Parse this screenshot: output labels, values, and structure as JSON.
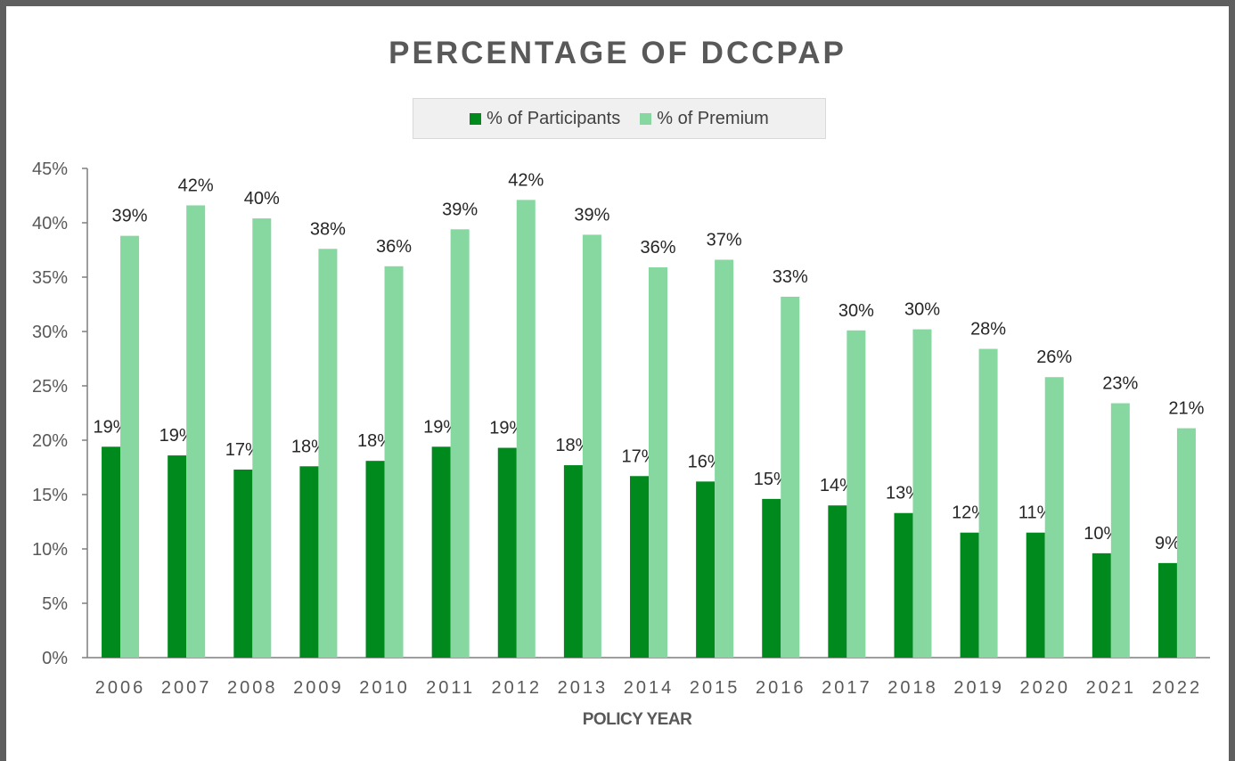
{
  "chart_data": {
    "type": "bar",
    "title": "PERCENTAGE OF DCCPAP",
    "xlabel": "POLICY YEAR",
    "ylabel": "",
    "ylim": [
      0,
      45
    ],
    "y_ticks": [
      "0%",
      "5%",
      "10%",
      "15%",
      "20%",
      "25%",
      "30%",
      "35%",
      "40%",
      "45%"
    ],
    "categories": [
      "2006",
      "2007",
      "2008",
      "2009",
      "2010",
      "2011",
      "2012",
      "2013",
      "2014",
      "2015",
      "2016",
      "2017",
      "2018",
      "2019",
      "2020",
      "2021",
      "2022"
    ],
    "series": [
      {
        "name": "% of Participants",
        "color": "#008a1e",
        "values": [
          19.4,
          18.6,
          17.3,
          17.6,
          18.1,
          19.4,
          19.3,
          17.7,
          16.7,
          16.2,
          14.6,
          14.0,
          13.3,
          11.5,
          11.5,
          9.6,
          8.7
        ],
        "labels": [
          "19%",
          "19%",
          "17%",
          "18%",
          "18%",
          "19%",
          "19%",
          "18%",
          "17%",
          "16%",
          "15%",
          "14%",
          "13%",
          "12%",
          "11%",
          "10%",
          "9%"
        ]
      },
      {
        "name": "% of Premium",
        "color": "#86d7a0",
        "values": [
          38.8,
          41.6,
          40.4,
          37.6,
          36.0,
          39.4,
          42.1,
          38.9,
          35.9,
          36.6,
          33.2,
          30.1,
          30.2,
          28.4,
          25.8,
          23.4,
          21.1
        ],
        "labels": [
          "39%",
          "42%",
          "40%",
          "38%",
          "36%",
          "39%",
          "42%",
          "39%",
          "36%",
          "37%",
          "33%",
          "30%",
          "30%",
          "28%",
          "26%",
          "23%",
          "21%"
        ]
      }
    ],
    "legend": "top",
    "grid": false
  }
}
